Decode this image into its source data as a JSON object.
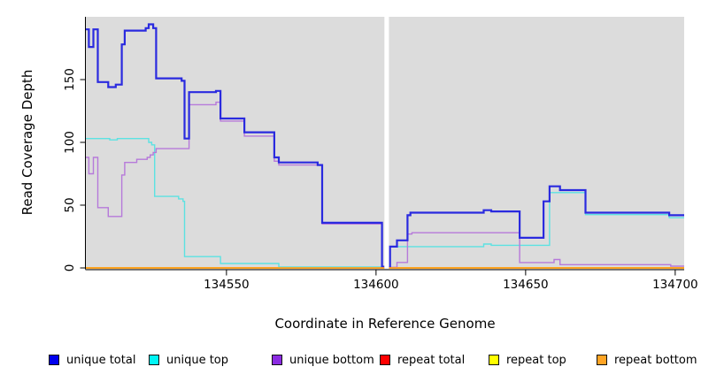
{
  "figure": {
    "background": "#FFFFFF",
    "panel_background": "#DCDCDC",
    "axis_color": "#000000",
    "gap_band_color": "#FFFFFF"
  },
  "chart_data": {
    "type": "line",
    "subtype": "step",
    "title": "",
    "xlabel": "Coordinate in Reference Genome",
    "ylabel": "Read Coverage Depth",
    "xlim": [
      134503,
      134703
    ],
    "ylim": [
      0,
      200
    ],
    "x_ticks": [
      {
        "value": 134550,
        "label": "134550"
      },
      {
        "value": 134600,
        "label": "134600"
      },
      {
        "value": 134650,
        "label": "134650"
      },
      {
        "value": 134700,
        "label": "134700"
      }
    ],
    "y_ticks": [
      {
        "value": 0,
        "label": "0"
      },
      {
        "value": 50,
        "label": "50"
      },
      {
        "value": 100,
        "label": "100"
      },
      {
        "value": 150,
        "label": "150"
      }
    ],
    "grid": false,
    "gap": {
      "from": 134602.8,
      "to": 134604.3,
      "note": "white vertical no-data band"
    },
    "legend_position": "bottom",
    "series": [
      {
        "name": "unique total",
        "color": "#2A2ADF",
        "swatch": "#0000EE",
        "width": 2.2,
        "z": 5,
        "segments": [
          {
            "points": [
              [
                134503,
                190
              ],
              [
                134504,
                176
              ],
              [
                134505.5,
                190
              ],
              [
                134507,
                148
              ],
              [
                134510.5,
                144
              ],
              [
                134513,
                146
              ],
              [
                134515,
                178
              ],
              [
                134516,
                189
              ],
              [
                134523,
                191
              ],
              [
                134524,
                194
              ],
              [
                134525.5,
                191
              ],
              [
                134526.5,
                151
              ],
              [
                134535,
                149
              ],
              [
                134536,
                103
              ],
              [
                134537.5,
                140
              ],
              [
                134546.5,
                141
              ],
              [
                134548,
                119
              ],
              [
                134556,
                108
              ],
              [
                134566,
                88
              ],
              [
                134567.5,
                84
              ],
              [
                134580.5,
                82
              ],
              [
                134582,
                36
              ],
              [
                134602,
                1
              ]
            ],
            "end": 134602.8
          },
          {
            "points": [
              [
                134604.3,
                0.5
              ],
              [
                134604.7,
                17
              ],
              [
                134607,
                22
              ],
              [
                134610.5,
                42
              ],
              [
                134611.5,
                44
              ],
              [
                134636,
                46
              ],
              [
                134638.5,
                45
              ],
              [
                134648,
                24
              ],
              [
                134656,
                53
              ],
              [
                134658,
                65
              ],
              [
                134661.5,
                62
              ],
              [
                134670,
                44
              ],
              [
                134698,
                42
              ]
            ],
            "end": 134703
          }
        ]
      },
      {
        "name": "unique top",
        "color": "#5CE2E2",
        "swatch": "#00F5F5",
        "width": 1.4,
        "z": 3,
        "segments": [
          {
            "points": [
              [
                134503,
                103
              ],
              [
                134511,
                102
              ],
              [
                134513.5,
                103
              ],
              [
                134524,
                100
              ],
              [
                134525,
                98
              ],
              [
                134526,
                57
              ],
              [
                134534,
                55
              ],
              [
                134535.5,
                53
              ],
              [
                134536,
                9
              ],
              [
                134548,
                3.5
              ],
              [
                134567.5,
                0.7
              ]
            ],
            "end": 134602.8
          },
          {
            "points": [
              [
                134604.3,
                0.5
              ],
              [
                134604.7,
                17
              ],
              [
                134636,
                19
              ],
              [
                134638.5,
                18
              ],
              [
                134658,
                60
              ],
              [
                134670,
                42.5
              ],
              [
                134698,
                40
              ]
            ],
            "end": 134703
          }
        ]
      },
      {
        "name": "unique bottom",
        "color": "#B679DA",
        "swatch": "#8B2BE2",
        "width": 1.4,
        "z": 4,
        "segments": [
          {
            "points": [
              [
                134503,
                88
              ],
              [
                134504,
                75
              ],
              [
                134505.5,
                88
              ],
              [
                134507,
                48
              ],
              [
                134510.5,
                41
              ],
              [
                134515,
                74
              ],
              [
                134516,
                84
              ],
              [
                134520,
                86.5
              ],
              [
                134523.5,
                88
              ],
              [
                134524.5,
                90
              ],
              [
                134525.5,
                92
              ],
              [
                134526.5,
                95
              ],
              [
                134537.5,
                130
              ],
              [
                134546.5,
                132
              ],
              [
                134548,
                117
              ],
              [
                134556,
                105
              ],
              [
                134566,
                85
              ],
              [
                134567.5,
                82
              ],
              [
                134582,
                35
              ],
              [
                134602,
                0.5
              ]
            ],
            "end": 134602.8
          },
          {
            "points": [
              [
                134604.3,
                0.5
              ],
              [
                134607,
                4.4
              ],
              [
                134610.5,
                27
              ],
              [
                134612,
                28
              ],
              [
                134648,
                4.3
              ],
              [
                134659.5,
                6.7
              ],
              [
                134661.5,
                2.6
              ],
              [
                134698.5,
                1.4
              ]
            ],
            "end": 134703
          }
        ]
      },
      {
        "name": "repeat total",
        "color": "#E00000",
        "swatch": "#FF0000",
        "width": 1.4,
        "z": 1,
        "segments": [
          {
            "points": [
              [
                134503,
                0
              ]
            ],
            "end": 134602.8
          },
          {
            "points": [
              [
                134604.3,
                0
              ]
            ],
            "end": 134703
          }
        ]
      },
      {
        "name": "repeat top",
        "color": "#EDED00",
        "swatch": "#FFFF00",
        "width": 1.4,
        "z": 2,
        "segments": [
          {
            "points": [
              [
                134503,
                0
              ]
            ],
            "end": 134602.8
          },
          {
            "points": [
              [
                134604.3,
                0
              ]
            ],
            "end": 134703
          }
        ]
      },
      {
        "name": "repeat bottom",
        "color": "#FFA01E",
        "swatch": "#FFA424",
        "width": 1.8,
        "z": 6,
        "segments": [
          {
            "points": [
              [
                134503,
                0
              ]
            ],
            "end": 134602.8
          },
          {
            "points": [
              [
                134604.3,
                0
              ]
            ],
            "end": 134703
          }
        ]
      }
    ]
  }
}
